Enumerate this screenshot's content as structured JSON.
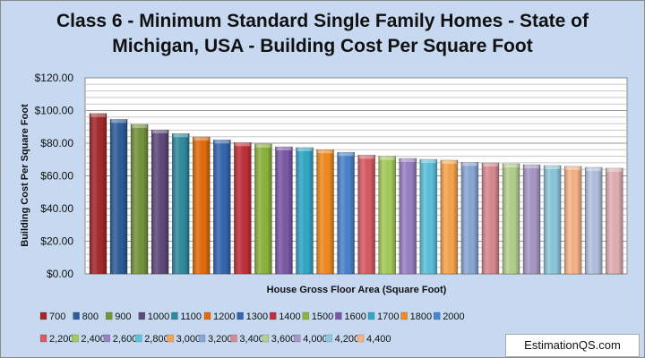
{
  "chart_data": {
    "type": "bar",
    "title": "Class 6 - Minimum Standard Single Family Homes  - State of Michigan, USA  - Building Cost Per Square Foot",
    "xlabel": "House Gross Floor Area (Square Foot)",
    "ylabel": "Building Cost Per Square Foot",
    "ylim": [
      0,
      120
    ],
    "yticks": [
      "$0.00",
      "$20.00",
      "$40.00",
      "$60.00",
      "$80.00",
      "$100.00",
      "$120.00"
    ],
    "grid": true,
    "legend_position": "bottom",
    "categories": [
      "700",
      "800",
      "900",
      "1000",
      "1100",
      "1200",
      "1300",
      "1400",
      "1500",
      "1600",
      "1700",
      "1800",
      "2000",
      "2,200",
      "2,400",
      "2,600",
      "2,800",
      "3,000",
      "3,200",
      "3,400",
      "3,600",
      "4,000",
      "4,200",
      "4,400",
      null,
      null
    ],
    "values": [
      98.2,
      94.6,
      91.5,
      88.2,
      85.9,
      83.8,
      82.0,
      80.4,
      79.5,
      77.8,
      77.3,
      76.0,
      74.4,
      72.7,
      71.9,
      70.7,
      70.1,
      69.6,
      68.3,
      67.9,
      67.4,
      66.8,
      66.3,
      65.8,
      65.2,
      64.7
    ],
    "colors": [
      "#a4282b",
      "#2d5d9c",
      "#77933c",
      "#5f497a",
      "#2f8aa0",
      "#e36c0a",
      "#3466b0",
      "#c0303a",
      "#8cb33c",
      "#7a58a8",
      "#31a7c6",
      "#f28a1e",
      "#4a83cf",
      "#d95a62",
      "#a5cc5a",
      "#9a80c4",
      "#5bc2dc",
      "#f7a54a",
      "#8aa7d4",
      "#d88a90",
      "#b5d18c",
      "#a898c6",
      "#8cc8dc",
      "#f7b486",
      "#b3c2e0",
      "#e0b0b4"
    ]
  },
  "watermark": "EstimationQS.com"
}
